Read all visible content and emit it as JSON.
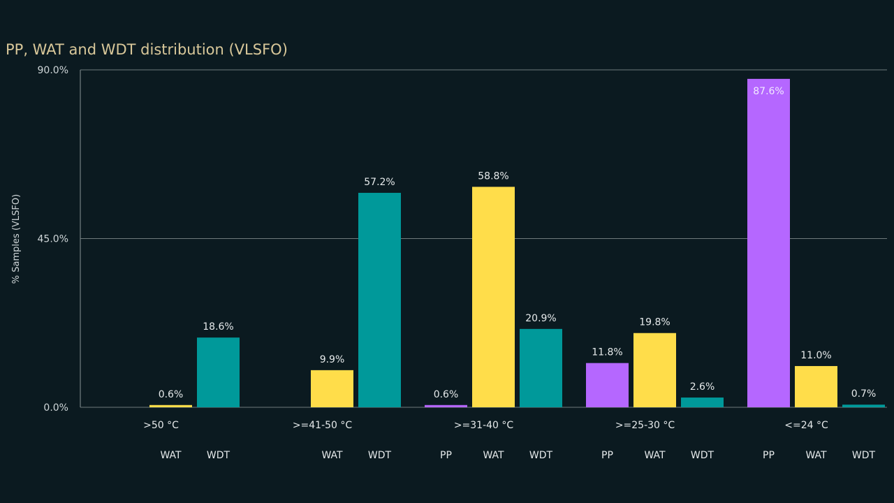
{
  "chart_data": {
    "type": "bar",
    "title": "PP, WAT and WDT distribution (VLSFO)",
    "ylabel": "% Samples (VLSFO)",
    "xlabel": "",
    "ylim": [
      0,
      90
    ],
    "yticks": [
      "0.0%",
      "45.0%",
      "90.0%"
    ],
    "yticks_values": [
      0,
      45,
      90
    ],
    "grid": true,
    "colors": {
      "PP": "#b567ff",
      "WAT": "#ffdd4a",
      "WDT": "#00999a"
    },
    "groups": [
      {
        "category": ">50 °C",
        "bars": [
          {
            "series": "WAT",
            "value": 0.6,
            "label": "0.6%"
          },
          {
            "series": "WDT",
            "value": 18.6,
            "label": "18.6%"
          }
        ]
      },
      {
        "category": ">=41-50 °C",
        "bars": [
          {
            "series": "WAT",
            "value": 9.9,
            "label": "9.9%"
          },
          {
            "series": "WDT",
            "value": 57.2,
            "label": "57.2%"
          }
        ]
      },
      {
        "category": ">=31-40 °C",
        "bars": [
          {
            "series": "PP",
            "value": 0.6,
            "label": "0.6%"
          },
          {
            "series": "WAT",
            "value": 58.8,
            "label": "58.8%"
          },
          {
            "series": "WDT",
            "value": 20.9,
            "label": "20.9%"
          }
        ]
      },
      {
        "category": ">=25-30 °C",
        "bars": [
          {
            "series": "PP",
            "value": 11.8,
            "label": "11.8%"
          },
          {
            "series": "WAT",
            "value": 19.8,
            "label": "19.8%"
          },
          {
            "series": "WDT",
            "value": 2.6,
            "label": "2.6%"
          }
        ]
      },
      {
        "category": "<=24 °C",
        "bars": [
          {
            "series": "PP",
            "value": 87.6,
            "label": "87.6%"
          },
          {
            "series": "WAT",
            "value": 11.0,
            "label": "11.0%"
          },
          {
            "series": "WDT",
            "value": 0.7,
            "label": "0.7%"
          }
        ]
      }
    ]
  }
}
